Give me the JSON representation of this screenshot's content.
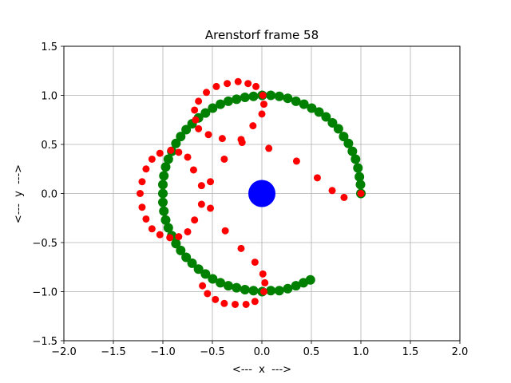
{
  "chart_data": {
    "type": "scatter",
    "title": "Arenstorf frame 58",
    "xlabel": "<---  x  --->",
    "ylabel": "<---  y  --->",
    "xlim": [
      -2.0,
      2.0
    ],
    "ylim": [
      -1.5,
      1.5
    ],
    "xticks": [
      -2.0,
      -1.5,
      -1.0,
      -0.5,
      0.0,
      0.5,
      1.0,
      1.5,
      2.0
    ],
    "yticks": [
      -1.5,
      -1.0,
      -0.5,
      0.0,
      0.5,
      1.0,
      1.5
    ],
    "xtick_labels": [
      "−2.0",
      "−1.5",
      "−1.0",
      "−0.5",
      "0.0",
      "0.5",
      "1.0",
      "1.5",
      "2.0"
    ],
    "ytick_labels": [
      "−1.5",
      "−1.0",
      "−0.5",
      "0.0",
      "0.5",
      "1.0",
      "1.5"
    ],
    "grid": true,
    "colors": {
      "center": "#0000ff",
      "moon_orbit": "#008000",
      "satellite": "#ff0000"
    },
    "center_body": {
      "x": 0.0,
      "y": 0.0
    },
    "series": [
      {
        "marker": "large",
        "color": "#008000",
        "points": [
          [
            1.0,
            0.0
          ],
          [
            0.996,
            0.09
          ],
          [
            0.985,
            0.17
          ],
          [
            0.97,
            0.26
          ],
          [
            0.946,
            0.35
          ],
          [
            0.914,
            0.43
          ],
          [
            0.874,
            0.51
          ],
          [
            0.826,
            0.58
          ],
          [
            0.773,
            0.66
          ],
          [
            0.713,
            0.72
          ],
          [
            0.648,
            0.78
          ],
          [
            0.577,
            0.83
          ],
          [
            0.503,
            0.87
          ],
          [
            0.425,
            0.91
          ],
          [
            0.344,
            0.94
          ],
          [
            0.261,
            0.97
          ],
          [
            0.176,
            0.99
          ],
          [
            0.09,
            1.0
          ],
          [
            0.003,
            1.0
          ],
          [
            -0.085,
            0.99
          ],
          [
            -0.171,
            0.98
          ],
          [
            -0.256,
            0.96
          ],
          [
            -0.339,
            0.94
          ],
          [
            -0.419,
            0.91
          ],
          [
            -0.497,
            0.87
          ],
          [
            -0.57,
            0.82
          ],
          [
            -0.64,
            0.77
          ],
          [
            -0.705,
            0.71
          ],
          [
            -0.765,
            0.65
          ],
          [
            -0.82,
            0.58
          ],
          [
            -0.868,
            0.51
          ],
          [
            -0.91,
            0.43
          ],
          [
            -0.945,
            0.35
          ],
          [
            -0.972,
            0.27
          ],
          [
            -0.99,
            0.18
          ],
          [
            -1.0,
            0.09
          ],
          [
            -1.0,
            0.0
          ],
          [
            -1.0,
            -0.09
          ],
          [
            -0.99,
            -0.18
          ],
          [
            -0.972,
            -0.27
          ],
          [
            -0.945,
            -0.35
          ],
          [
            -0.91,
            -0.43
          ],
          [
            -0.868,
            -0.51
          ],
          [
            -0.82,
            -0.58
          ],
          [
            -0.765,
            -0.65
          ],
          [
            -0.705,
            -0.71
          ],
          [
            -0.64,
            -0.77
          ],
          [
            -0.57,
            -0.82
          ],
          [
            -0.497,
            -0.87
          ],
          [
            -0.419,
            -0.91
          ],
          [
            -0.339,
            -0.94
          ],
          [
            -0.256,
            -0.96
          ],
          [
            -0.171,
            -0.98
          ],
          [
            -0.085,
            -0.99
          ],
          [
            0.003,
            -1.0
          ],
          [
            0.09,
            -0.99
          ],
          [
            0.176,
            -0.99
          ],
          [
            0.261,
            -0.97
          ],
          [
            0.344,
            -0.94
          ],
          [
            0.42,
            -0.91
          ],
          [
            0.49,
            -0.88
          ]
        ]
      },
      {
        "marker": "small",
        "color": "#ff0000",
        "points": [
          [
            1.0,
            0.0
          ],
          [
            0.83,
            -0.04
          ],
          [
            0.71,
            0.03
          ],
          [
            0.56,
            0.16
          ],
          [
            0.35,
            0.33
          ],
          [
            0.07,
            0.46
          ],
          [
            -0.2,
            0.52
          ],
          [
            -0.21,
            0.55
          ],
          [
            -0.09,
            0.69
          ],
          [
            0.0,
            0.81
          ],
          [
            0.02,
            0.91
          ],
          [
            0.01,
            1.0
          ],
          [
            -0.06,
            1.09
          ],
          [
            -0.14,
            1.12
          ],
          [
            -0.24,
            1.14
          ],
          [
            -0.35,
            1.12
          ],
          [
            -0.46,
            1.09
          ],
          [
            -0.56,
            1.03
          ],
          [
            -0.64,
            0.94
          ],
          [
            -0.68,
            0.85
          ],
          [
            -0.67,
            0.75
          ],
          [
            -0.64,
            0.66
          ],
          [
            -0.54,
            0.6
          ],
          [
            -0.4,
            0.56
          ],
          [
            -0.38,
            0.35
          ],
          [
            -0.52,
            0.12
          ],
          [
            -0.61,
            0.08
          ],
          [
            -0.69,
            0.24
          ],
          [
            -0.75,
            0.37
          ],
          [
            -0.84,
            0.42
          ],
          [
            -0.92,
            0.44
          ],
          [
            -1.03,
            0.41
          ],
          [
            -1.11,
            0.35
          ],
          [
            -1.17,
            0.25
          ],
          [
            -1.21,
            0.12
          ],
          [
            -1.23,
            0.0
          ],
          [
            -1.21,
            -0.14
          ],
          [
            -1.17,
            -0.26
          ],
          [
            -1.11,
            -0.36
          ],
          [
            -1.03,
            -0.42
          ],
          [
            -0.93,
            -0.45
          ],
          [
            -0.84,
            -0.44
          ],
          [
            -0.75,
            -0.39
          ],
          [
            -0.68,
            -0.27
          ],
          [
            -0.61,
            -0.11
          ],
          [
            -0.52,
            -0.15
          ],
          [
            -0.37,
            -0.38
          ],
          [
            -0.21,
            -0.56
          ],
          [
            -0.07,
            -0.7
          ],
          [
            0.01,
            -0.82
          ],
          [
            0.03,
            -0.91
          ],
          [
            0.02,
            -1.0
          ],
          [
            -0.07,
            -1.1
          ],
          [
            -0.16,
            -1.13
          ],
          [
            -0.27,
            -1.13
          ],
          [
            -0.38,
            -1.12
          ],
          [
            -0.47,
            -1.08
          ],
          [
            -0.55,
            -1.02
          ],
          [
            -0.6,
            -0.94
          ]
        ]
      }
    ]
  }
}
